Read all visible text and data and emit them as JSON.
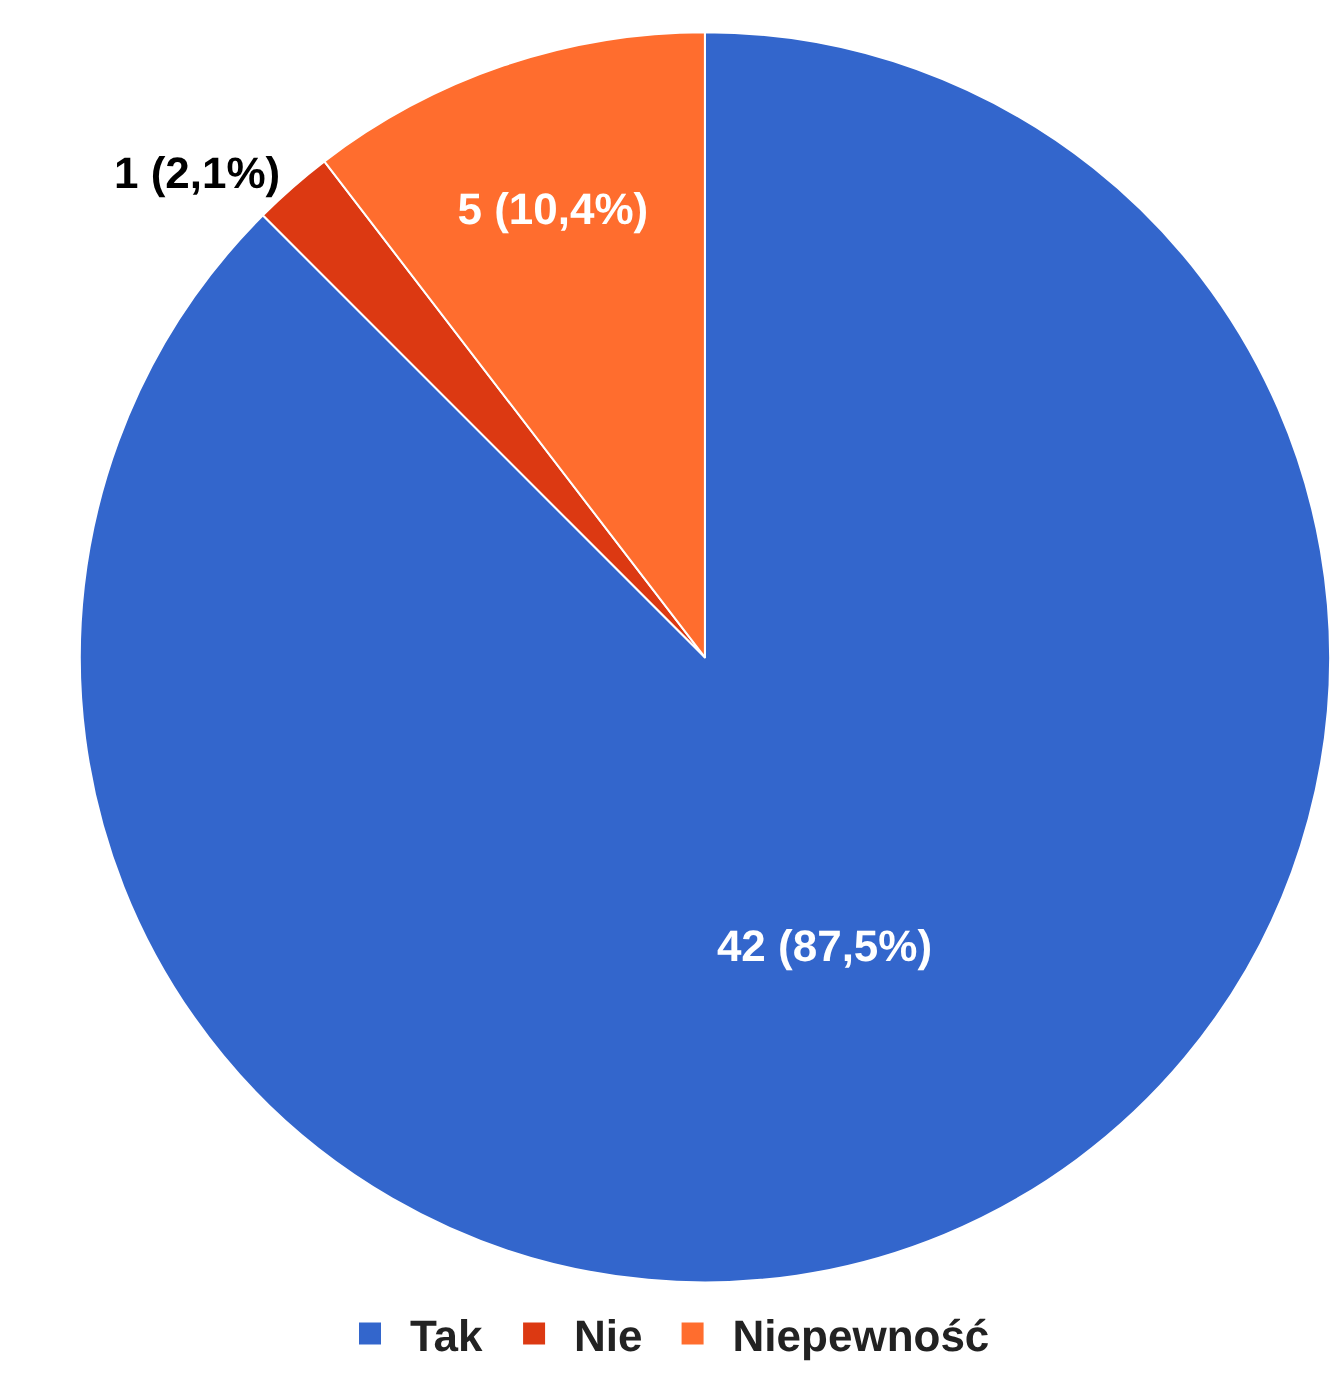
{
  "chart_data": {
    "type": "pie",
    "categories": [
      "Tak",
      "Nie",
      "Niepewność"
    ],
    "values": [
      42,
      1,
      5
    ],
    "colors": [
      "#3366cc",
      "#dc3912",
      "#ff6d2e"
    ],
    "value_labels": [
      "42 (87,5%)",
      "1 (2,1%)",
      "5 (10,4%)"
    ],
    "legend": "bottom"
  }
}
